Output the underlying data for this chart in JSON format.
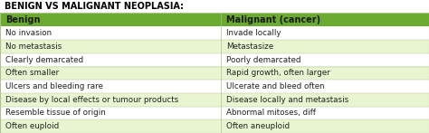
{
  "title": "BENIGN VS MALIGNANT NEOPLASIA:",
  "header": [
    "Benign",
    "Malignant (cancer)"
  ],
  "rows": [
    [
      "No invasion",
      "Invade locally"
    ],
    [
      "No metastasis",
      "Metastasize"
    ],
    [
      "Clearly demarcated",
      "Poorly demarcated"
    ],
    [
      "Often smaller",
      "Rapid growth, often larger"
    ],
    [
      "Ulcers and bleeding rare",
      "Ulcerate and bleed often"
    ],
    [
      "Disease by local effects or tumour products",
      "Disease locally and metastasis"
    ],
    [
      "Resemble tissue of origin",
      "Abnormal mitoses, diff"
    ],
    [
      "Often euploid",
      "Often aneuploid"
    ]
  ],
  "header_bg": "#6aaa2e",
  "row_bg_odd": "#e8f5d0",
  "row_bg_even": "#ffffff",
  "header_text_color": "#1a1a1a",
  "row_text_color": "#222222",
  "title_color": "#000000",
  "title_fontsize": 7.0,
  "header_fontsize": 7.0,
  "row_fontsize": 6.3,
  "col_split": 0.515,
  "fig_bg": "#ffffff",
  "table_border_color": "#b0c090",
  "outer_border_color": "#b0c090"
}
